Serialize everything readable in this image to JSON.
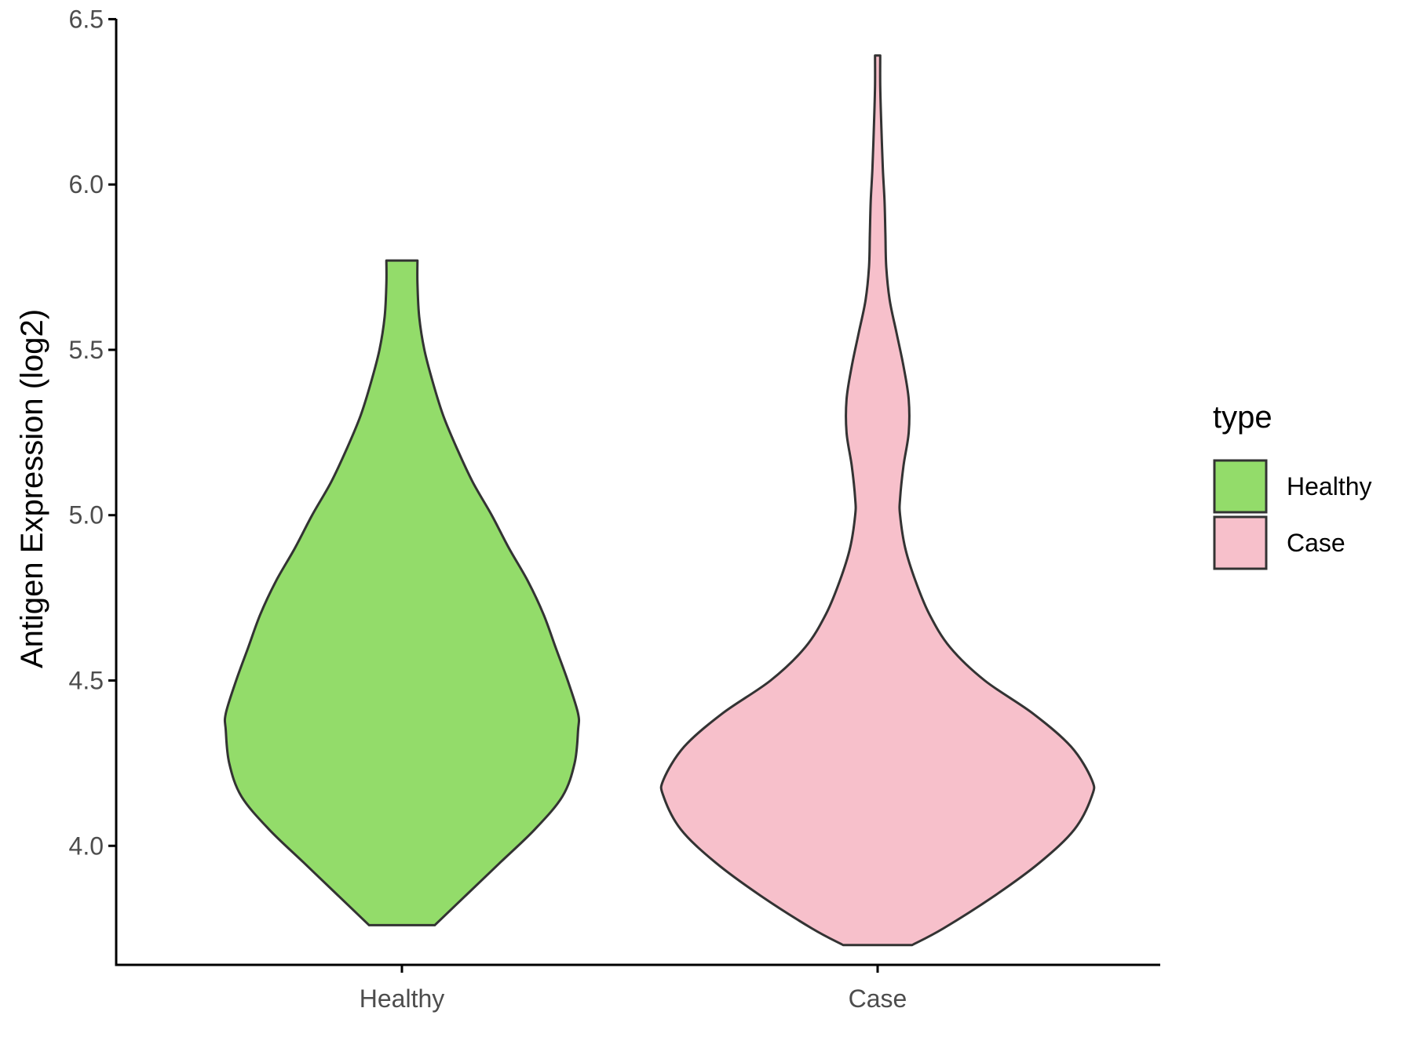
{
  "chart_data": {
    "type": "violin",
    "title": "",
    "xlabel": "",
    "ylabel": "Antigen Expression (log2)",
    "ylim": [
      3.64,
      6.52
    ],
    "yticks": [
      "4.0",
      "4.5",
      "5.0",
      "5.5",
      "6.0",
      "6.5"
    ],
    "categories": [
      "Healthy",
      "Case"
    ],
    "legend": {
      "title": "type",
      "position": "right",
      "items": [
        {
          "label": "Healthy",
          "color": "#93DC6A"
        },
        {
          "label": "Case",
          "color": "#F7C0CB"
        }
      ]
    },
    "outline_color": "#333333",
    "series": [
      {
        "name": "Healthy",
        "color": "#93DC6A",
        "min": 3.76,
        "max": 5.77,
        "density_profile": [
          [
            3.76,
            0.19
          ],
          [
            3.8,
            0.27
          ],
          [
            3.85,
            0.37
          ],
          [
            3.95,
            0.57
          ],
          [
            4.05,
            0.77
          ],
          [
            4.15,
            0.93
          ],
          [
            4.25,
            1.0
          ],
          [
            4.35,
            1.02
          ],
          [
            4.4,
            1.02
          ],
          [
            4.5,
            0.96
          ],
          [
            4.6,
            0.89
          ],
          [
            4.7,
            0.82
          ],
          [
            4.8,
            0.73
          ],
          [
            4.9,
            0.62
          ],
          [
            5.0,
            0.52
          ],
          [
            5.1,
            0.41
          ],
          [
            5.2,
            0.32
          ],
          [
            5.3,
            0.24
          ],
          [
            5.4,
            0.18
          ],
          [
            5.5,
            0.13
          ],
          [
            5.6,
            0.1
          ],
          [
            5.7,
            0.09
          ],
          [
            5.77,
            0.09
          ]
        ]
      },
      {
        "name": "Case",
        "color": "#F7C0CB",
        "min": 3.7,
        "max": 6.39,
        "density_profile": [
          [
            3.7,
            0.2
          ],
          [
            3.75,
            0.38
          ],
          [
            3.85,
            0.68
          ],
          [
            3.95,
            0.94
          ],
          [
            4.05,
            1.14
          ],
          [
            4.15,
            1.24
          ],
          [
            4.2,
            1.24
          ],
          [
            4.3,
            1.12
          ],
          [
            4.4,
            0.9
          ],
          [
            4.5,
            0.62
          ],
          [
            4.6,
            0.42
          ],
          [
            4.7,
            0.3
          ],
          [
            4.8,
            0.22
          ],
          [
            4.9,
            0.16
          ],
          [
            5.0,
            0.13
          ],
          [
            5.05,
            0.13
          ],
          [
            5.15,
            0.15
          ],
          [
            5.25,
            0.18
          ],
          [
            5.35,
            0.18
          ],
          [
            5.45,
            0.15
          ],
          [
            5.55,
            0.11
          ],
          [
            5.65,
            0.07
          ],
          [
            5.75,
            0.05
          ],
          [
            5.85,
            0.045
          ],
          [
            5.95,
            0.04
          ],
          [
            6.05,
            0.03
          ],
          [
            6.2,
            0.02
          ],
          [
            6.3,
            0.015
          ],
          [
            6.39,
            0.015
          ]
        ]
      }
    ]
  }
}
